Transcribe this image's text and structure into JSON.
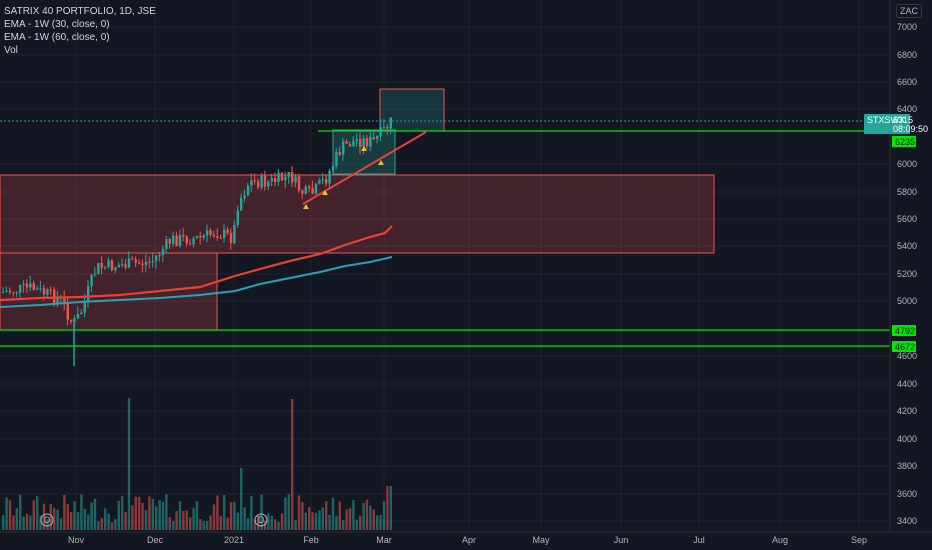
{
  "legend": {
    "symbol": "SATRIX 40 PORTFOLIO, 1D, JSE",
    "ema1": "EMA - 1W (30, close, 0)",
    "ema2": "EMA - 1W (60, close, 0)",
    "vol": "Vol"
  },
  "currency": "ZAC",
  "price_axis": {
    "ticks": [
      "7000",
      "6800",
      "6600",
      "6400",
      "6000",
      "5800",
      "5600",
      "5400",
      "5200",
      "5000",
      "4600",
      "4400",
      "4200",
      "4000",
      "3800",
      "3600",
      "3400"
    ]
  },
  "time_axis": {
    "ticks": [
      "Nov",
      "Dec",
      "2021",
      "Feb",
      "Mar",
      "Apr",
      "May",
      "Jun",
      "Jul",
      "Aug",
      "Sep"
    ]
  },
  "price_tags": {
    "last_symbol": "STXSWX",
    "last_value": "6315",
    "countdown": "08:09:50",
    "level_6235": "6235",
    "level_4792": "4792",
    "level_4672": "4672"
  },
  "events": {
    "dividend_marker": "D"
  },
  "colors": {
    "background": "#131722",
    "up": "#26a69a",
    "down": "#ef5350",
    "ema_red": "#e8413b",
    "ema_teal": "#2e9fb5",
    "level_line": "#00e600",
    "zone_red": "#ef5350",
    "zone_green": "#26a69a"
  },
  "chart_data": {
    "type": "candlestick",
    "title": "SATRIX 40 PORTFOLIO, 1D, JSE",
    "ylim": [
      3300,
      7100
    ],
    "horizontal_levels": [
      6235,
      4792,
      4672
    ],
    "last_price": 6315,
    "ema_30": [
      5060,
      5075,
      5090,
      5110,
      5130,
      5150,
      5175,
      5205,
      5230,
      5260,
      5285,
      5310,
      5330,
      5370,
      5420,
      5480,
      5540
    ],
    "ema_60": [
      4960,
      4965,
      4975,
      4985,
      5000,
      5020,
      5040,
      5070,
      5100,
      5130,
      5150,
      5180,
      5200,
      5230,
      5260,
      5290,
      5320
    ]
  }
}
